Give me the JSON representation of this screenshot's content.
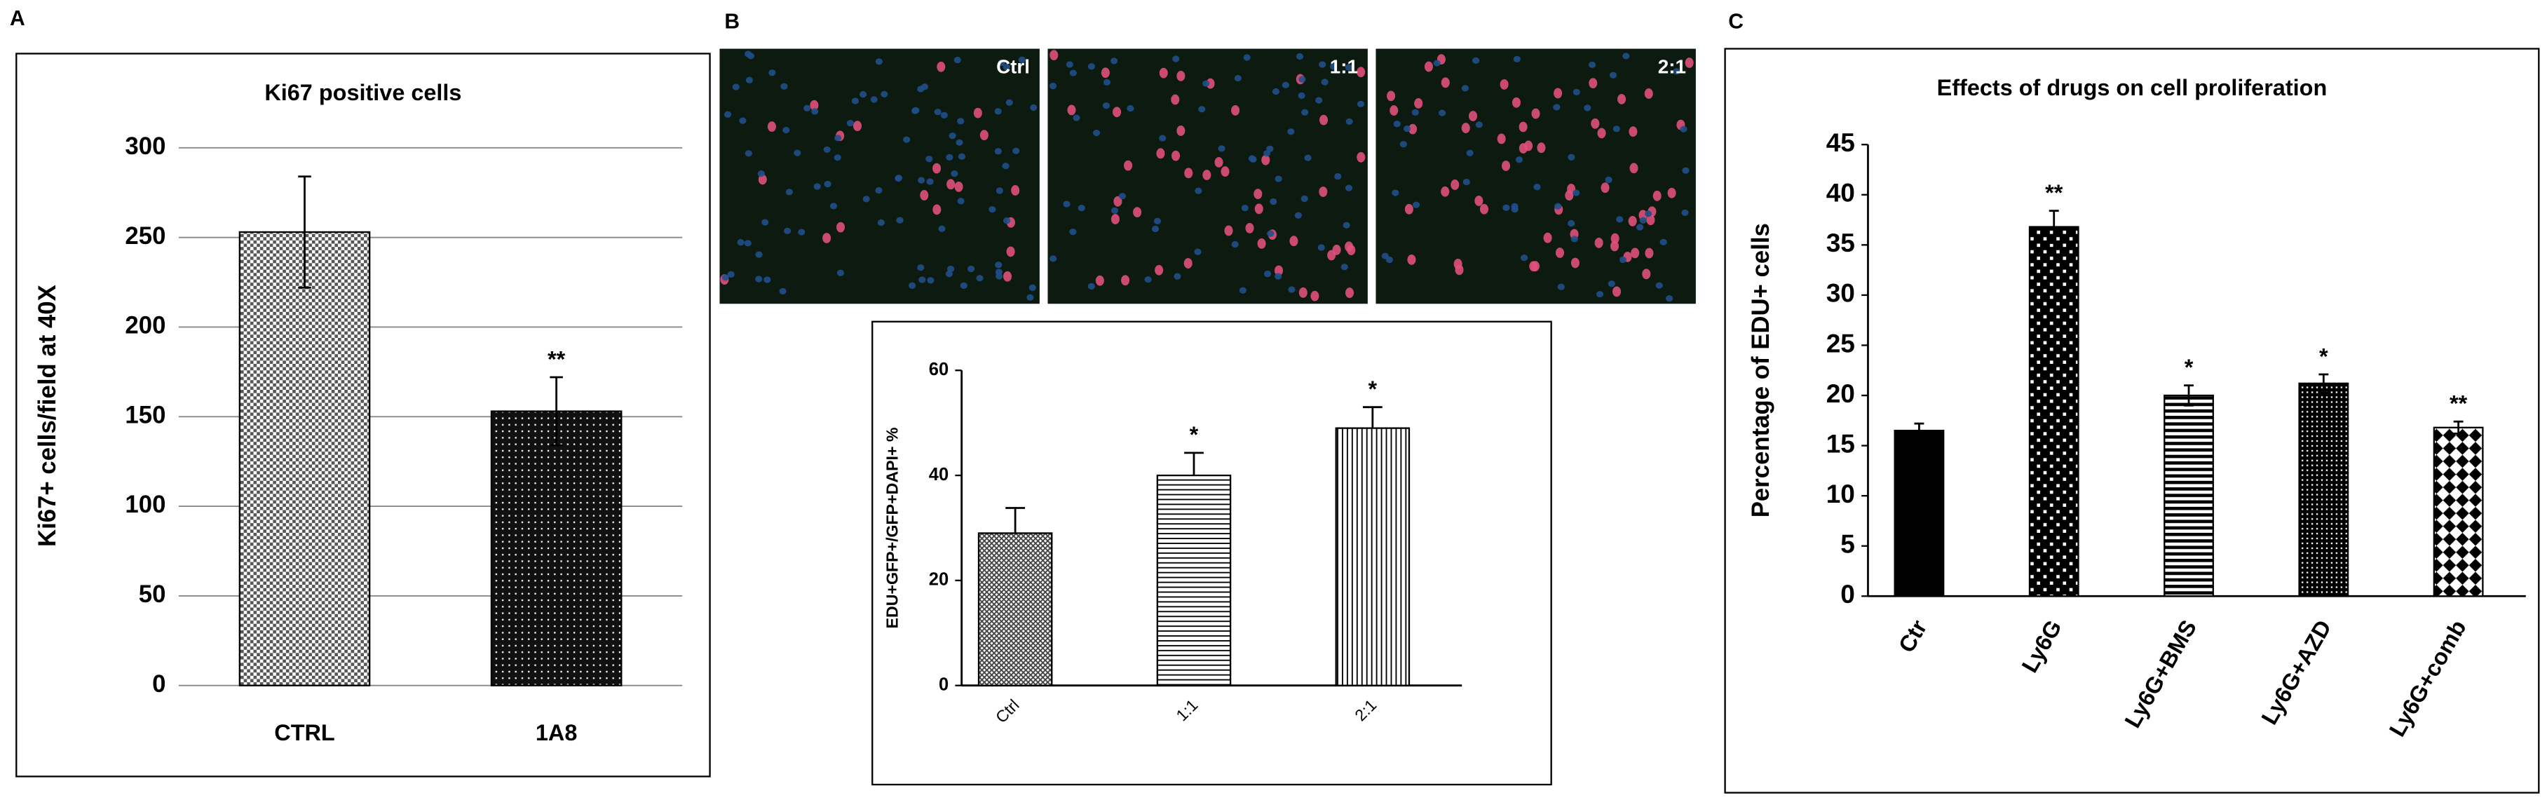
{
  "panel_labels": [
    "A",
    "B",
    "C"
  ],
  "micrographs": [
    {
      "label": "Ctrl"
    },
    {
      "label": "1:1"
    },
    {
      "label": "2:1"
    }
  ],
  "chart_data": [
    {
      "type": "bar",
      "title": "Ki67 positive cells",
      "y_label": "Ki67+ cells/field at 40X",
      "categories": [
        "CTRL",
        "1A8"
      ],
      "values": [
        253,
        153
      ],
      "errors": [
        31,
        19
      ],
      "annotations": [
        null,
        "**"
      ],
      "color": "#000000",
      "ylim": [
        0,
        300
      ],
      "yticks": [
        0,
        50,
        100,
        150,
        200,
        250,
        300
      ],
      "grid": true
    },
    {
      "type": "bar",
      "y_label": "EDU+GFP+/GFP+DAPI+ %",
      "categories": [
        "Ctrl",
        "1:1",
        "2:1"
      ],
      "values": [
        29,
        40,
        49
      ],
      "errors": [
        4.8,
        4.3,
        4
      ],
      "annotations": [
        null,
        "*",
        "*"
      ],
      "color": "#000000",
      "ylim": [
        0,
        60
      ],
      "yticks": [
        0,
        20,
        40,
        60
      ],
      "grid": false
    },
    {
      "type": "bar",
      "title": "Effects of drugs on cell proliferation",
      "y_label": "Percentage of EDU+ cells",
      "categories": [
        "Ctr",
        "Ly6G",
        "Ly6G+BMS",
        "Ly6G+AZD",
        "Ly6G+comb"
      ],
      "values": [
        16.5,
        36.8,
        20,
        21.2,
        16.8
      ],
      "errors": [
        0.7,
        1.6,
        1,
        0.9,
        0.6
      ],
      "annotations": [
        null,
        "**",
        "*",
        "*",
        "**"
      ],
      "color": "#000000",
      "ylim": [
        0,
        45
      ],
      "yticks": [
        0,
        5,
        10,
        15,
        20,
        25,
        30,
        35,
        40,
        45
      ],
      "grid": false
    }
  ]
}
